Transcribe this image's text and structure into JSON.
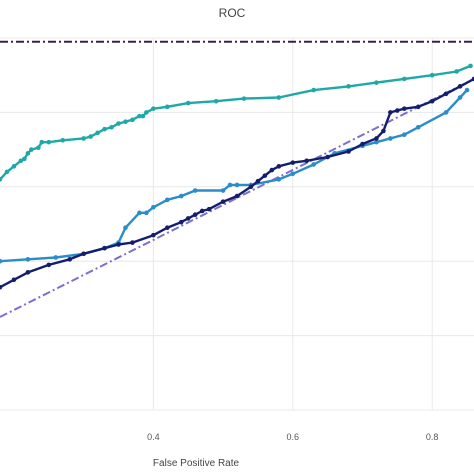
{
  "chart_data": {
    "type": "line",
    "title": "ROC",
    "xlabel": "False Positive Rate",
    "ylabel": "",
    "xlim": [
      0.18,
      0.86
    ],
    "ylim": [
      0.0,
      1.0
    ],
    "xticks": [
      0.4,
      0.6,
      0.8
    ],
    "xtick_labels": [
      "0.4",
      "0.6",
      "0.8"
    ],
    "yticks": [
      0.0,
      0.2,
      0.4,
      0.6,
      0.8,
      1.0
    ],
    "grid": true,
    "legend": "none",
    "series": [
      {
        "style": "dash-dot",
        "color": "#3b1f4a",
        "markers": false,
        "x": [
          0.18,
          0.86
        ],
        "y": [
          0.99,
          0.99
        ]
      },
      {
        "style": "dash-dot",
        "color": "#7b6fd0",
        "markers": false,
        "x": [
          0.18,
          0.86
        ],
        "y": [
          0.25,
          0.89
        ]
      },
      {
        "style": "solid",
        "color": "#1fa8a8",
        "markers": true,
        "x": [
          0.18,
          0.19,
          0.2,
          0.21,
          0.215,
          0.22,
          0.225,
          0.235,
          0.24,
          0.25,
          0.27,
          0.3,
          0.31,
          0.32,
          0.33,
          0.34,
          0.35,
          0.36,
          0.37,
          0.38,
          0.385,
          0.39,
          0.4,
          0.42,
          0.45,
          0.49,
          0.53,
          0.58,
          0.63,
          0.68,
          0.72,
          0.76,
          0.8,
          0.835,
          0.855
        ],
        "y": [
          0.62,
          0.64,
          0.655,
          0.67,
          0.675,
          0.69,
          0.7,
          0.705,
          0.72,
          0.72,
          0.725,
          0.73,
          0.735,
          0.745,
          0.755,
          0.76,
          0.77,
          0.775,
          0.78,
          0.79,
          0.79,
          0.8,
          0.81,
          0.815,
          0.825,
          0.83,
          0.837,
          0.84,
          0.86,
          0.87,
          0.88,
          0.89,
          0.9,
          0.91,
          0.925
        ]
      },
      {
        "style": "solid",
        "color": "#2a8cc8",
        "markers": true,
        "x": [
          0.18,
          0.22,
          0.26,
          0.3,
          0.33,
          0.35,
          0.36,
          0.38,
          0.39,
          0.4,
          0.42,
          0.44,
          0.46,
          0.5,
          0.51,
          0.52,
          0.54,
          0.58,
          0.6,
          0.63,
          0.66,
          0.7,
          0.72,
          0.74,
          0.76,
          0.78,
          0.82,
          0.84,
          0.85
        ],
        "y": [
          0.4,
          0.405,
          0.41,
          0.42,
          0.435,
          0.45,
          0.49,
          0.53,
          0.53,
          0.545,
          0.565,
          0.575,
          0.59,
          0.59,
          0.605,
          0.605,
          0.605,
          0.62,
          0.635,
          0.66,
          0.69,
          0.71,
          0.72,
          0.73,
          0.74,
          0.76,
          0.8,
          0.84,
          0.86
        ]
      },
      {
        "style": "solid",
        "color": "#141d6e",
        "markers": true,
        "x": [
          0.18,
          0.2,
          0.22,
          0.25,
          0.28,
          0.3,
          0.33,
          0.35,
          0.37,
          0.4,
          0.42,
          0.44,
          0.45,
          0.46,
          0.47,
          0.48,
          0.5,
          0.52,
          0.54,
          0.55,
          0.56,
          0.57,
          0.58,
          0.6,
          0.62,
          0.65,
          0.68,
          0.7,
          0.72,
          0.73,
          0.74,
          0.75,
          0.76,
          0.78,
          0.8,
          0.82,
          0.84,
          0.86
        ],
        "y": [
          0.33,
          0.35,
          0.37,
          0.39,
          0.405,
          0.42,
          0.435,
          0.445,
          0.45,
          0.47,
          0.49,
          0.505,
          0.515,
          0.525,
          0.535,
          0.54,
          0.56,
          0.575,
          0.6,
          0.615,
          0.63,
          0.645,
          0.655,
          0.665,
          0.67,
          0.68,
          0.695,
          0.715,
          0.73,
          0.75,
          0.8,
          0.805,
          0.81,
          0.815,
          0.83,
          0.85,
          0.87,
          0.89
        ]
      }
    ]
  }
}
